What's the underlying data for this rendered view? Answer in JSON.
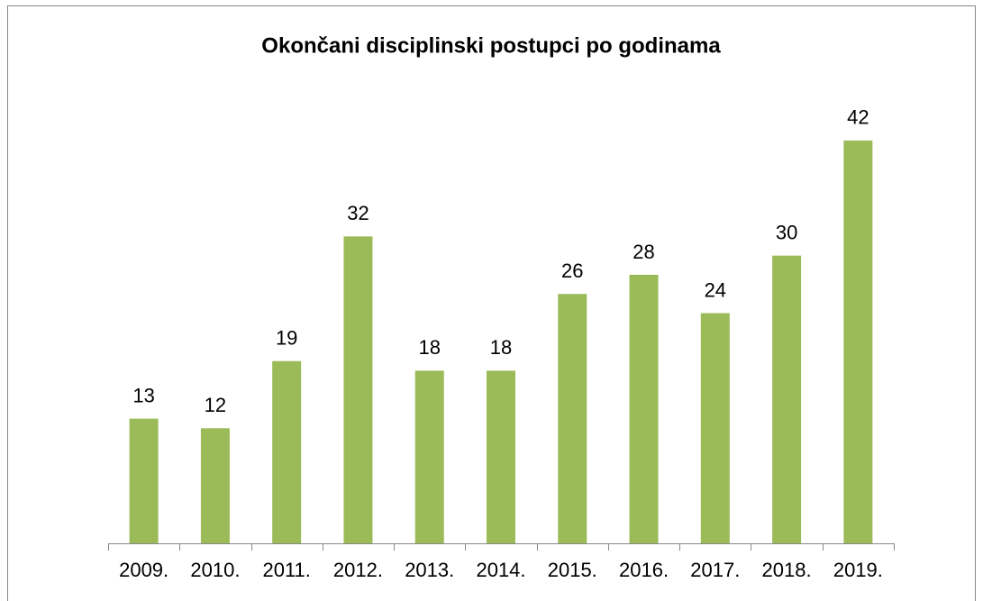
{
  "chart_data": {
    "type": "bar",
    "title": "Okončani disciplinski postupci po godinama",
    "categories": [
      "2009.",
      "2010.",
      "2011.",
      "2012.",
      "2013.",
      "2014.",
      "2015.",
      "2016.",
      "2017.",
      "2018.",
      "2019."
    ],
    "values": [
      13,
      12,
      19,
      32,
      18,
      18,
      26,
      28,
      24,
      30,
      42
    ],
    "color": "#9bbb59",
    "ylim": [
      0,
      45
    ]
  }
}
